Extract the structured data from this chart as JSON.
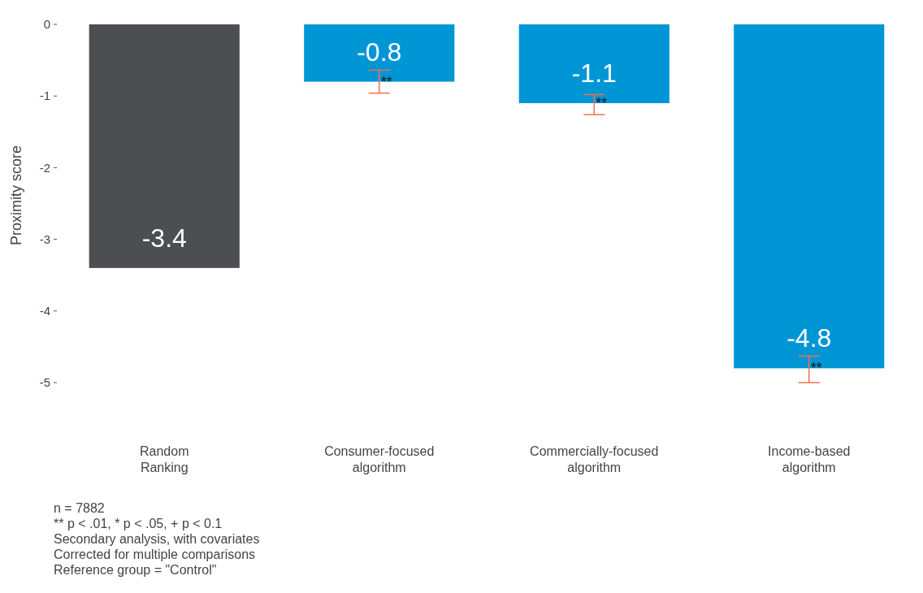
{
  "chart_data": {
    "type": "bar",
    "ylabel": "Proximity score",
    "categories": [
      "Random\nRanking",
      "Consumer-focused\nalgorithm",
      "Commercially-focused\nalgorithm",
      "Income-based\nalgorithm"
    ],
    "values": [
      -3.4,
      -0.8,
      -1.1,
      -4.8
    ],
    "colors": [
      "#4d4e52",
      "#0096d6",
      "#0096d6",
      "#0096d6"
    ],
    "errors": [
      null,
      [
        -0.96,
        -0.64
      ],
      [
        -1.26,
        -0.98
      ],
      [
        -5.0,
        -4.63
      ]
    ],
    "data_labels": true,
    "ylim": [
      -5,
      0
    ],
    "yticks": [
      0,
      -1,
      -2,
      -3,
      -4,
      -5
    ],
    "grid": false,
    "annotations": [
      {
        "text": "**",
        "x": "Consumer-focused\nalgorithm",
        "y": -0.8
      },
      {
        "text": "**",
        "x": "Commercially-focused\nalgorithm",
        "y": -1.1
      },
      {
        "text": "**",
        "x": "Income-based\nalgorithm",
        "y": -4.8
      },
      "n = 7882",
      "** p < .01, * p < .05, + p < 0.1",
      "Secondary analysis, with covariates",
      "Corrected for multiple comparisons",
      "Reference group = \"Control\""
    ]
  }
}
